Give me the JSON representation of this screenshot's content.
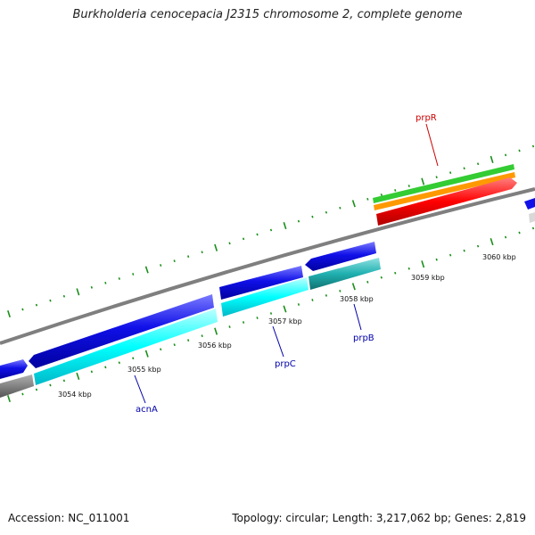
{
  "title": "Burkholderia cenocepacia J2315 chromosome 2, complete genome",
  "accession_text": "Accession: NC_011001",
  "summary_text": "Topology: circular; Length: 3,217,062 bp; Genes: 2,819",
  "ticks": [
    {
      "label": "3054 kbp"
    },
    {
      "label": "3055 kbp"
    },
    {
      "label": "3056 kbp"
    },
    {
      "label": "3057 kbp"
    },
    {
      "label": "3058 kbp"
    },
    {
      "label": "3059 kbp"
    },
    {
      "label": "3060 kbp"
    }
  ],
  "gene_labels": [
    {
      "name": "prpR",
      "color": "#cc0000"
    },
    {
      "name": "acnA",
      "color": "#0000aa"
    },
    {
      "name": "prpC",
      "color": "#0000aa"
    },
    {
      "name": "prpB",
      "color": "#0000aa"
    }
  ],
  "colors": {
    "cds_forward": "#1010e8",
    "cds_reverse_light": "#00ffff",
    "cds_teal": "#1fb8b8",
    "backbone": "#7f7f7f",
    "tick_green": "#1a8f1a",
    "feature_green": "#33cc33",
    "feature_orange": "#ff9900",
    "feature_red": "#ff0000"
  }
}
